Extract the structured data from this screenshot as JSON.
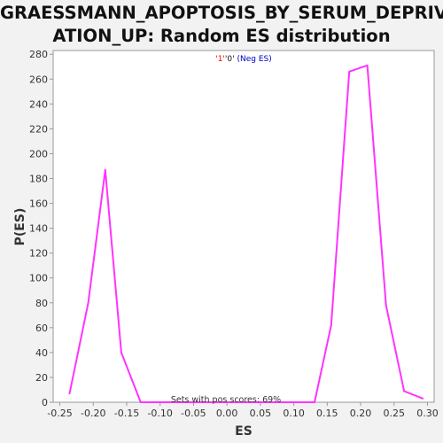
{
  "chart_data": {
    "type": "line",
    "title_line1": "GRAESSMANN_APOPTOSIS_BY_SERUM_DEPRIV",
    "title_line2": "ATION_UP: Random ES distribution",
    "xlabel": "ES",
    "ylabel": "P(ES)",
    "xlim": [
      -0.26,
      0.31
    ],
    "ylim": [
      0,
      283
    ],
    "x_ticks": [
      "-0.25",
      "-0.20",
      "-0.15",
      "-0.10",
      "-0.05",
      "0.00",
      "0.05",
      "0.10",
      "0.15",
      "0.20",
      "0.25",
      "0.30"
    ],
    "x_tick_values": [
      -0.25,
      -0.2,
      -0.15,
      -0.1,
      -0.05,
      0.0,
      0.05,
      0.1,
      0.15,
      0.2,
      0.25,
      0.3
    ],
    "y_ticks": [
      0,
      20,
      40,
      60,
      80,
      100,
      120,
      140,
      160,
      180,
      200,
      220,
      240,
      260,
      280
    ],
    "legend": {
      "q1": "'1'",
      "q2": "'0'",
      "rest": " (Neg ES)"
    },
    "annotation": "Sets with pos scores: 69%",
    "series": [
      {
        "color": "#ff33ff",
        "x": [
          -0.2355,
          -0.2075,
          -0.182,
          -0.158,
          -0.129,
          -0.1,
          -0.07,
          -0.04,
          -0.01,
          0.02,
          0.05,
          0.08,
          0.105,
          0.131,
          0.156,
          0.183,
          0.21,
          0.238,
          0.265,
          0.293
        ],
        "y": [
          7,
          80,
          187,
          40,
          0,
          0,
          0,
          0,
          0,
          0,
          0,
          0,
          0,
          0,
          62,
          266,
          271,
          78,
          9,
          3
        ]
      }
    ],
    "grid": false,
    "legend_position": "top-center"
  }
}
